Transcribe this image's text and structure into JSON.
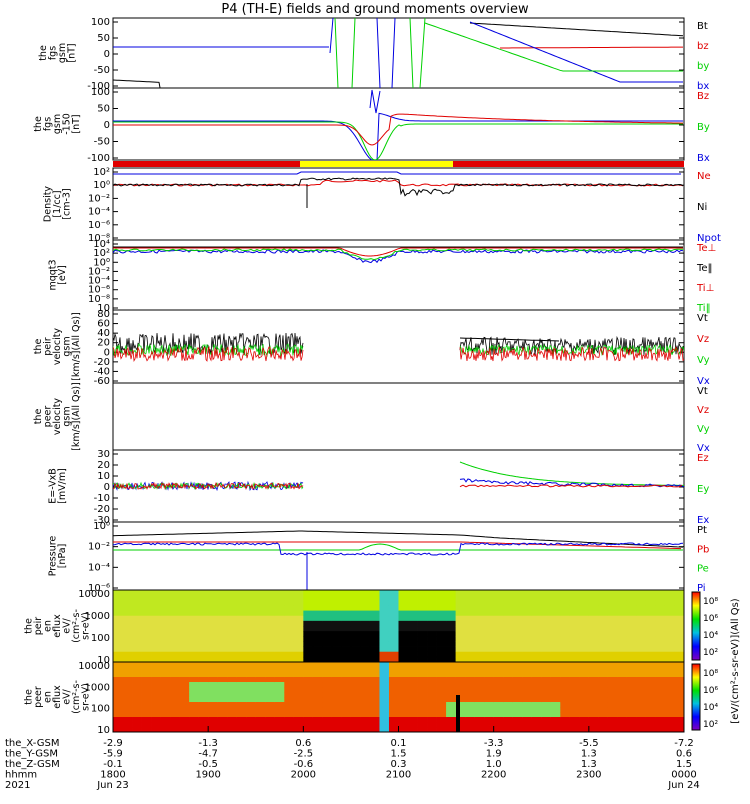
{
  "title": "P4 (TH-E) fields and ground moments overview",
  "colors": {
    "black": "#000000",
    "red": "#e00000",
    "green": "#00d000",
    "blue": "#0000e0",
    "yellow": "#ffff00"
  },
  "chart_data": [
    {
      "type": "line",
      "panel": "fgs",
      "ylabel": [
        "the",
        "fgs",
        "gsm",
        "[nT]"
      ],
      "yticks": [
        "100",
        "50",
        "0",
        "-50",
        "-100"
      ],
      "ylim": [
        -100,
        100
      ],
      "legend": [
        {
          "label": "Bt",
          "color": "black"
        },
        {
          "label": "bz",
          "color": "red"
        },
        {
          "label": "by",
          "color": "green"
        },
        {
          "label": "bx",
          "color": "blue"
        }
      ]
    },
    {
      "type": "line",
      "panel": "fgs-smoothed",
      "ylabel": [
        "the",
        "fgs",
        "gsm",
        "-150",
        "[nT]"
      ],
      "yticks": [
        "100",
        "50",
        "0",
        "-50",
        "-100"
      ],
      "ylim": [
        -140,
        110
      ],
      "legend": [
        {
          "label": "Bz",
          "color": "red"
        },
        {
          "label": "By",
          "color": "green"
        },
        {
          "label": "Bx",
          "color": "blue"
        }
      ]
    },
    {
      "type": "line",
      "panel": "density",
      "ylabel": [
        "Density",
        "[1/cc]",
        "[cm-3]"
      ],
      "yticks": [
        "10²",
        "10⁰",
        "10⁻²",
        "10⁻⁴",
        "10⁻⁶",
        "10⁻⁸"
      ],
      "log": true,
      "legend": [
        {
          "label": "Ne",
          "color": "red"
        },
        {
          "label": "Ni",
          "color": "black"
        },
        {
          "label": "Npot",
          "color": "blue"
        }
      ]
    },
    {
      "type": "line",
      "panel": "temperature",
      "ylabel": [
        "mqqt3",
        "[eV]"
      ],
      "yticks": [
        "10⁴",
        "10²",
        "10⁰",
        "10⁻²",
        "10⁻⁴",
        "10⁻⁶",
        "10⁻⁸",
        "10"
      ],
      "log": true,
      "legend": [
        {
          "label": "Te⊥",
          "color": "red"
        },
        {
          "label": "Te‖",
          "color": "black"
        },
        {
          "label": "Ti⊥",
          "color": "red"
        },
        {
          "label": "Ti‖",
          "color": "green"
        }
      ]
    },
    {
      "type": "line",
      "panel": "peir-velocity",
      "ylabel": [
        "the",
        "peir",
        "velocity",
        "gsm",
        "[km/s](All Qs)]"
      ],
      "yticks": [
        "80",
        "60",
        "40",
        "20",
        "0",
        "-20",
        "-40",
        "-60"
      ],
      "ylim": [
        -60,
        80
      ],
      "legend": [
        {
          "label": "Vt",
          "color": "black"
        },
        {
          "label": "Vz",
          "color": "red"
        },
        {
          "label": "Vy",
          "color": "green"
        },
        {
          "label": "Vx",
          "color": "blue"
        }
      ]
    },
    {
      "type": "line",
      "panel": "peer-velocity",
      "ylabel": [
        "the",
        "peer",
        "velocity",
        "gsm",
        "[km/s](All Qs)]"
      ],
      "yticks": [],
      "legend": [
        {
          "label": "Vt",
          "color": "black"
        },
        {
          "label": "Vz",
          "color": "red"
        },
        {
          "label": "Vy",
          "color": "green"
        },
        {
          "label": "Vx",
          "color": "blue"
        }
      ]
    },
    {
      "type": "line",
      "panel": "efield",
      "ylabel": [
        "E=-VxB",
        "[mV/m]"
      ],
      "yticks": [
        "30",
        "20",
        "10",
        "0",
        "-10",
        "-20",
        "-30"
      ],
      "ylim": [
        -30,
        30
      ],
      "legend": [
        {
          "label": "Ez",
          "color": "red"
        },
        {
          "label": "Ey",
          "color": "green"
        },
        {
          "label": "Ex",
          "color": "blue"
        }
      ]
    },
    {
      "type": "line",
      "panel": "pressure",
      "ylabel": [
        "Pressure",
        "[nPa]"
      ],
      "yticks": [
        "10⁰",
        "10⁻²",
        "10⁻⁴",
        "10⁻⁶"
      ],
      "log": true,
      "legend": [
        {
          "label": "Pt",
          "color": "black"
        },
        {
          "label": "Pb",
          "color": "red"
        },
        {
          "label": "Pe",
          "color": "green"
        },
        {
          "label": "Pi",
          "color": "blue"
        }
      ]
    },
    {
      "type": "heatmap",
      "panel": "peir-eflux",
      "ylabel": [
        "the",
        "peir",
        "en",
        "eflux",
        "eV/",
        "(cm²-s-",
        "sr-eV)"
      ],
      "yticks": [
        "10000",
        "1000",
        "100",
        "10"
      ],
      "colorbar_ticks": [
        "10⁸",
        "10⁶",
        "10⁴",
        "10²"
      ],
      "colorbar_label": "[eV/(cm²-s-sr-eV)](All Qs)"
    },
    {
      "type": "heatmap",
      "panel": "peer-eflux",
      "ylabel": [
        "the",
        "peer",
        "en",
        "eflux",
        "eV/",
        "(cm²-s-",
        "sr-eV)"
      ],
      "yticks": [
        "10000",
        "1000",
        "100",
        "10"
      ],
      "colorbar_ticks": [
        "10⁸",
        "10⁶",
        "10⁴",
        "10²"
      ],
      "colorbar_label": "[eV/(cm²-s-sr-eV)](All Qs)"
    }
  ],
  "xaxis": {
    "rows": [
      {
        "label": "the_X-GSM",
        "values": [
          "-2.9",
          "-1.3",
          "0.6",
          "0.1",
          "-3.3",
          "-5.5",
          "-7.2"
        ]
      },
      {
        "label": "the_Y-GSM",
        "values": [
          "-5.9",
          "-4.7",
          "-2.5",
          "1.5",
          "1.9",
          "1.3",
          "0.6"
        ]
      },
      {
        "label": "the_Z-GSM",
        "values": [
          "-0.1",
          "-0.5",
          "-0.6",
          "0.3",
          "1.0",
          "1.3",
          "1.5"
        ]
      },
      {
        "label": "hhmm",
        "values": [
          "1800",
          "1900",
          "2000",
          "2100",
          "2200",
          "2300",
          "0000"
        ]
      }
    ],
    "year_label": "2021",
    "date_labels": [
      "Jun 23",
      "Jun 24"
    ]
  }
}
